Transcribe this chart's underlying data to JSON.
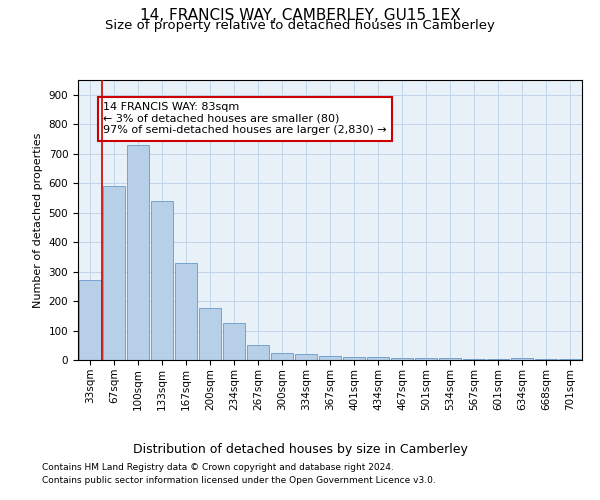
{
  "title": "14, FRANCIS WAY, CAMBERLEY, GU15 1EX",
  "subtitle": "Size of property relative to detached houses in Camberley",
  "xlabel": "Distribution of detached houses by size in Camberley",
  "ylabel": "Number of detached properties",
  "categories": [
    "33sqm",
    "67sqm",
    "100sqm",
    "133sqm",
    "167sqm",
    "200sqm",
    "234sqm",
    "267sqm",
    "300sqm",
    "334sqm",
    "367sqm",
    "401sqm",
    "434sqm",
    "467sqm",
    "501sqm",
    "534sqm",
    "567sqm",
    "601sqm",
    "634sqm",
    "668sqm",
    "701sqm"
  ],
  "values": [
    270,
    590,
    730,
    540,
    330,
    175,
    125,
    50,
    25,
    20,
    15,
    10,
    10,
    8,
    8,
    8,
    5,
    3,
    8,
    3,
    2
  ],
  "bar_color": "#b8cfe8",
  "bar_edge_color": "#6699cc",
  "grid_color": "#c0d4e8",
  "background_color": "#e8f0f8",
  "vline_x": 0.5,
  "vline_color": "#cc0000",
  "annotation_text": "14 FRANCIS WAY: 83sqm\n← 3% of detached houses are smaller (80)\n97% of semi-detached houses are larger (2,830) →",
  "annotation_box_color": "#ffffff",
  "annotation_border_color": "#cc0000",
  "ylim": [
    0,
    950
  ],
  "yticks": [
    0,
    100,
    200,
    300,
    400,
    500,
    600,
    700,
    800,
    900
  ],
  "footer_line1": "Contains HM Land Registry data © Crown copyright and database right 2024.",
  "footer_line2": "Contains public sector information licensed under the Open Government Licence v3.0.",
  "title_fontsize": 11,
  "subtitle_fontsize": 9.5,
  "xlabel_fontsize": 9,
  "ylabel_fontsize": 8,
  "tick_fontsize": 7.5,
  "annotation_fontsize": 8,
  "footer_fontsize": 6.5
}
